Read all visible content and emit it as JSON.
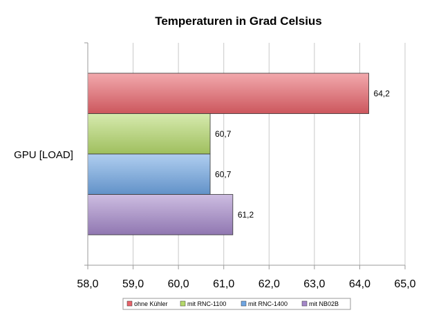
{
  "chart_data": {
    "type": "bar",
    "orientation": "horizontal",
    "title": "Temperaturen in Grad Celsius",
    "categories": [
      "GPU [LOAD]"
    ],
    "series": [
      {
        "name": "ohne Kühler",
        "values": [
          64.2
        ],
        "label": "64,2",
        "color": "#e8636a"
      },
      {
        "name": "mit RNC-1100",
        "values": [
          60.7
        ],
        "label": "60,7",
        "color": "#b5d96b"
      },
      {
        "name": "mit RNC-1400",
        "values": [
          60.7
        ],
        "label": "60,7",
        "color": "#6fa6e3"
      },
      {
        "name": "mit NB02B",
        "values": [
          61.2
        ],
        "label": "61,2",
        "color": "#a487c9"
      }
    ],
    "xlim": [
      58,
      65
    ],
    "xticks": [
      58,
      59,
      60,
      61,
      62,
      63,
      64,
      65
    ],
    "xtick_labels": [
      "58,0",
      "59,0",
      "60,0",
      "61,0",
      "62,0",
      "63,0",
      "64,0",
      "65,0"
    ],
    "grid": true,
    "legend": "bottom"
  }
}
